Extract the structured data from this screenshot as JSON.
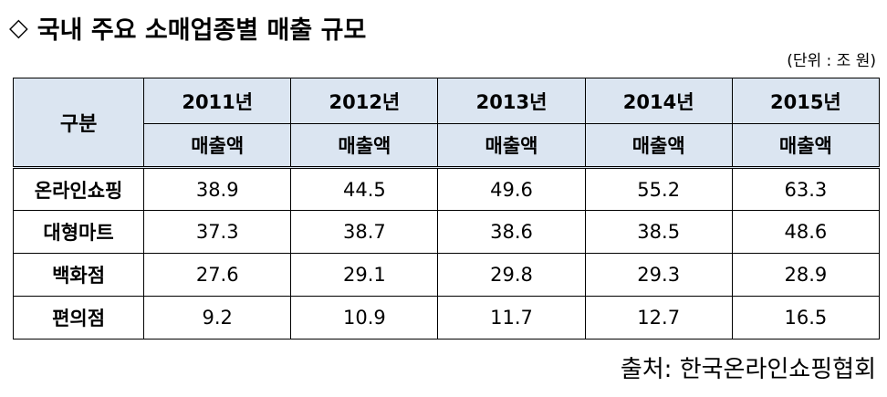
{
  "title": {
    "marker": "◇",
    "text": "국내 주요 소매업종별 매출 규모"
  },
  "unit_note": "(단위 : 조 원)",
  "table": {
    "corner_label": "구분",
    "years": [
      "2011년",
      "2012년",
      "2013년",
      "2014년",
      "2015년"
    ],
    "sub_label": "매출액",
    "rows": [
      {
        "name": "온라인쇼핑",
        "values": [
          "38.9",
          "44.5",
          "49.6",
          "55.2",
          "63.3"
        ]
      },
      {
        "name": "대형마트",
        "values": [
          "37.3",
          "38.7",
          "38.6",
          "38.5",
          "48.6"
        ]
      },
      {
        "name": "백화점",
        "values": [
          "27.6",
          "29.1",
          "29.8",
          "29.3",
          "28.9"
        ]
      },
      {
        "name": "편의점",
        "values": [
          "9.2",
          "10.9",
          "11.7",
          "12.7",
          "16.5"
        ]
      }
    ]
  },
  "source": "출처:  한국온라인쇼핑협회",
  "colors": {
    "header_background": "#dbe5f1",
    "border": "#000000"
  }
}
